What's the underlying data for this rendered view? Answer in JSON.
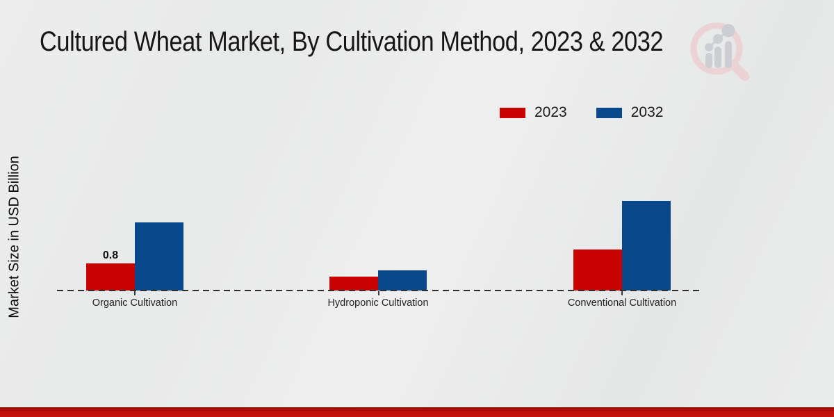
{
  "title": "Cultured Wheat Market, By Cultivation Method, 2023 & 2032",
  "y_axis_label": "Market Size in USD Billion",
  "colors": {
    "series_2023": "#c80302",
    "series_2032": "#09498b",
    "footer_bar": "#bf0f0b",
    "background": "#e9eaea",
    "baseline": "#2e2e2e"
  },
  "legend": {
    "items": [
      {
        "label": "2023",
        "color": "#c80302"
      },
      {
        "label": "2032",
        "color": "#09498b"
      }
    ],
    "position": "top-right"
  },
  "chart_data": {
    "type": "bar",
    "categories": [
      "Organic Cultivation",
      "Hydroponic Cultivation",
      "Conventional Cultivation"
    ],
    "series": [
      {
        "name": "2023",
        "color": "#c80302",
        "values": [
          0.8,
          0.4,
          1.2
        ],
        "data_labels": [
          "0.8",
          null,
          null
        ]
      },
      {
        "name": "2032",
        "color": "#09498b",
        "values": [
          2.0,
          0.6,
          2.65
        ],
        "data_labels": [
          null,
          null,
          null
        ]
      }
    ],
    "title": "Cultured Wheat Market, By Cultivation Method, 2023 & 2032",
    "xlabel": "",
    "ylabel": "Market Size in USD Billion",
    "ylim": [
      0,
      5.5
    ],
    "grid": false,
    "legend_position": "top-right",
    "baseline_style": "dashed",
    "only_labeled_value": "0.8"
  }
}
